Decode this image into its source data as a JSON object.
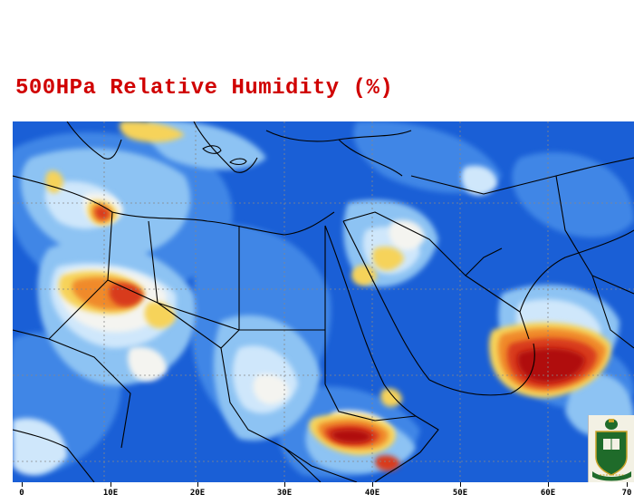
{
  "title": "500HPa Relative Humidity (%)",
  "map": {
    "type": "weather-contour-map",
    "variable": "relative humidity",
    "level": "500 hPa",
    "region": "Middle East / North Africa",
    "longitude_ticks": [
      "0",
      "10E",
      "20E",
      "30E",
      "40E",
      "50E",
      "60E",
      "70"
    ],
    "colors": {
      "very_dry": "#1a5fd6",
      "dry": "#3f86e6",
      "moderate": "#8dc3f3",
      "mid": "#cfe7fb",
      "neutral": "#f4f4f0",
      "moist": "#f6d35a",
      "wet": "#f08a2c",
      "very_wet": "#d83a1a",
      "saturated": "#b01010",
      "borders": "#000000",
      "gridlines": "#888888",
      "title": "#d00000"
    }
  },
  "logo": {
    "name": "university-seal",
    "colors": {
      "green": "#1f6b2a",
      "gold": "#c9a227"
    }
  }
}
